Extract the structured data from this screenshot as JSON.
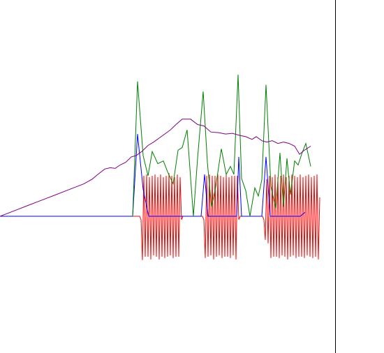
{
  "chart_data": {
    "type": "line",
    "title": "",
    "xlabel": "",
    "ylabel": "",
    "xlim": [
      0,
      480
    ],
    "ylim": [
      -80,
      240
    ],
    "grid": false,
    "legend": "none",
    "series": [
      {
        "color": "#ff0000",
        "points": [
          [
            0,
            0
          ],
          [
            200,
            0
          ],
          [
            202,
            -5
          ],
          [
            204,
            -65
          ],
          [
            206,
            60
          ],
          [
            208,
            -60
          ],
          [
            210,
            62
          ],
          [
            212,
            -60
          ],
          [
            214,
            58
          ],
          [
            216,
            -64
          ],
          [
            218,
            60
          ],
          [
            220,
            -58
          ],
          [
            222,
            62
          ],
          [
            224,
            -60
          ],
          [
            226,
            58
          ],
          [
            228,
            -64
          ],
          [
            230,
            62
          ],
          [
            232,
            -60
          ],
          [
            234,
            58
          ],
          [
            236,
            -62
          ],
          [
            238,
            60
          ],
          [
            240,
            -60
          ],
          [
            242,
            64
          ],
          [
            244,
            -58
          ],
          [
            246,
            60
          ],
          [
            248,
            -62
          ],
          [
            250,
            58
          ],
          [
            252,
            -60
          ],
          [
            254,
            62
          ],
          [
            256,
            -60
          ],
          [
            258,
            58
          ],
          [
            260,
            -5
          ],
          [
            262,
            0
          ],
          [
            290,
            0
          ],
          [
            292,
            -5
          ],
          [
            294,
            -62
          ],
          [
            296,
            60
          ],
          [
            298,
            -60
          ],
          [
            300,
            62
          ],
          [
            302,
            -58
          ],
          [
            304,
            60
          ],
          [
            306,
            -64
          ],
          [
            308,
            60
          ],
          [
            310,
            -60
          ],
          [
            312,
            62
          ],
          [
            314,
            -58
          ],
          [
            316,
            60
          ],
          [
            318,
            -62
          ],
          [
            320,
            58
          ],
          [
            322,
            -60
          ],
          [
            324,
            62
          ],
          [
            326,
            -60
          ],
          [
            328,
            58
          ],
          [
            330,
            -62
          ],
          [
            332,
            60
          ],
          [
            334,
            -58
          ],
          [
            336,
            60
          ],
          [
            338,
            -64
          ],
          [
            340,
            60
          ],
          [
            342,
            -5
          ],
          [
            344,
            0
          ],
          [
            376,
            0
          ],
          [
            378,
            -5
          ],
          [
            380,
            -35
          ],
          [
            382,
            55
          ],
          [
            384,
            -40
          ],
          [
            386,
            60
          ],
          [
            388,
            -62
          ],
          [
            390,
            58
          ],
          [
            392,
            -60
          ],
          [
            394,
            62
          ],
          [
            396,
            -60
          ],
          [
            398,
            58
          ],
          [
            400,
            -62
          ],
          [
            402,
            60
          ],
          [
            404,
            -58
          ],
          [
            406,
            62
          ],
          [
            408,
            -60
          ],
          [
            410,
            58
          ],
          [
            412,
            -64
          ],
          [
            414,
            60
          ],
          [
            416,
            -60
          ],
          [
            418,
            62
          ],
          [
            420,
            -58
          ],
          [
            422,
            60
          ],
          [
            424,
            -62
          ],
          [
            426,
            58
          ],
          [
            428,
            -60
          ],
          [
            430,
            62
          ],
          [
            432,
            -60
          ],
          [
            434,
            58
          ],
          [
            436,
            -62
          ],
          [
            438,
            60
          ],
          [
            440,
            -58
          ],
          [
            442,
            62
          ],
          [
            444,
            -60
          ],
          [
            446,
            58
          ],
          [
            448,
            -62
          ],
          [
            450,
            60
          ],
          [
            452,
            -60
          ],
          [
            454,
            62
          ],
          [
            456,
            -64
          ],
          [
            458,
            28
          ]
        ]
      },
      {
        "color": "#0000ff",
        "points": [
          [
            0,
            0
          ],
          [
            190,
            0
          ],
          [
            197,
            122
          ],
          [
            205,
            40
          ],
          [
            213,
            0
          ],
          [
            288,
            0
          ],
          [
            293,
            62
          ],
          [
            298,
            0
          ],
          [
            339,
            0
          ],
          [
            342,
            88
          ],
          [
            346,
            0
          ],
          [
            375,
            0
          ],
          [
            381,
            88
          ],
          [
            387,
            0
          ],
          [
            430,
            0
          ],
          [
            437,
            6
          ]
        ]
      },
      {
        "color": "#008000",
        "points": [
          [
            190,
            0
          ],
          [
            197,
            200
          ],
          [
            205,
            90
          ],
          [
            212,
            60
          ],
          [
            218,
            96
          ],
          [
            226,
            78
          ],
          [
            234,
            82
          ],
          [
            240,
            66
          ],
          [
            248,
            48
          ],
          [
            255,
            98
          ],
          [
            261,
            102
          ],
          [
            268,
            128
          ],
          [
            277,
            0
          ],
          [
            283,
            86
          ],
          [
            291,
            185
          ],
          [
            297,
            80
          ],
          [
            303,
            14
          ],
          [
            309,
            44
          ],
          [
            317,
            100
          ],
          [
            324,
            62
          ],
          [
            330,
            74
          ],
          [
            335,
            62
          ],
          [
            341,
            210
          ],
          [
            346,
            56
          ],
          [
            352,
            38
          ],
          [
            358,
            0
          ],
          [
            365,
            42
          ],
          [
            370,
            30
          ],
          [
            375,
            54
          ],
          [
            381,
            195
          ],
          [
            388,
            44
          ],
          [
            395,
            12
          ],
          [
            401,
            94
          ],
          [
            406,
            14
          ],
          [
            411,
            86
          ],
          [
            416,
            32
          ],
          [
            422,
            82
          ],
          [
            427,
            76
          ],
          [
            432,
            92
          ],
          [
            438,
            108
          ],
          [
            445,
            74
          ]
        ]
      },
      {
        "color": "#800080",
        "points": [
          [
            0,
            0
          ],
          [
            20,
            8
          ],
          [
            40,
            16
          ],
          [
            60,
            24
          ],
          [
            80,
            32
          ],
          [
            100,
            40
          ],
          [
            120,
            48
          ],
          [
            132,
            55
          ],
          [
            140,
            62
          ],
          [
            150,
            70
          ],
          [
            158,
            72
          ],
          [
            165,
            71
          ],
          [
            172,
            76
          ],
          [
            180,
            80
          ],
          [
            188,
            88
          ],
          [
            195,
            90
          ],
          [
            203,
            96
          ],
          [
            212,
            105
          ],
          [
            220,
            110
          ],
          [
            228,
            116
          ],
          [
            236,
            122
          ],
          [
            244,
            128
          ],
          [
            252,
            136
          ],
          [
            261,
            144
          ],
          [
            273,
            144
          ],
          [
            283,
            136
          ],
          [
            292,
            134
          ],
          [
            302,
            125
          ],
          [
            313,
            124
          ],
          [
            323,
            122
          ],
          [
            333,
            123
          ],
          [
            343,
            120
          ],
          [
            352,
            118
          ],
          [
            361,
            114
          ],
          [
            367,
            118
          ],
          [
            375,
            112
          ],
          [
            382,
            110
          ],
          [
            390,
            112
          ],
          [
            398,
            108
          ],
          [
            406,
            110
          ],
          [
            414,
            108
          ],
          [
            422,
            104
          ],
          [
            429,
            92
          ],
          [
            436,
            98
          ],
          [
            445,
            104
          ]
        ]
      }
    ]
  }
}
